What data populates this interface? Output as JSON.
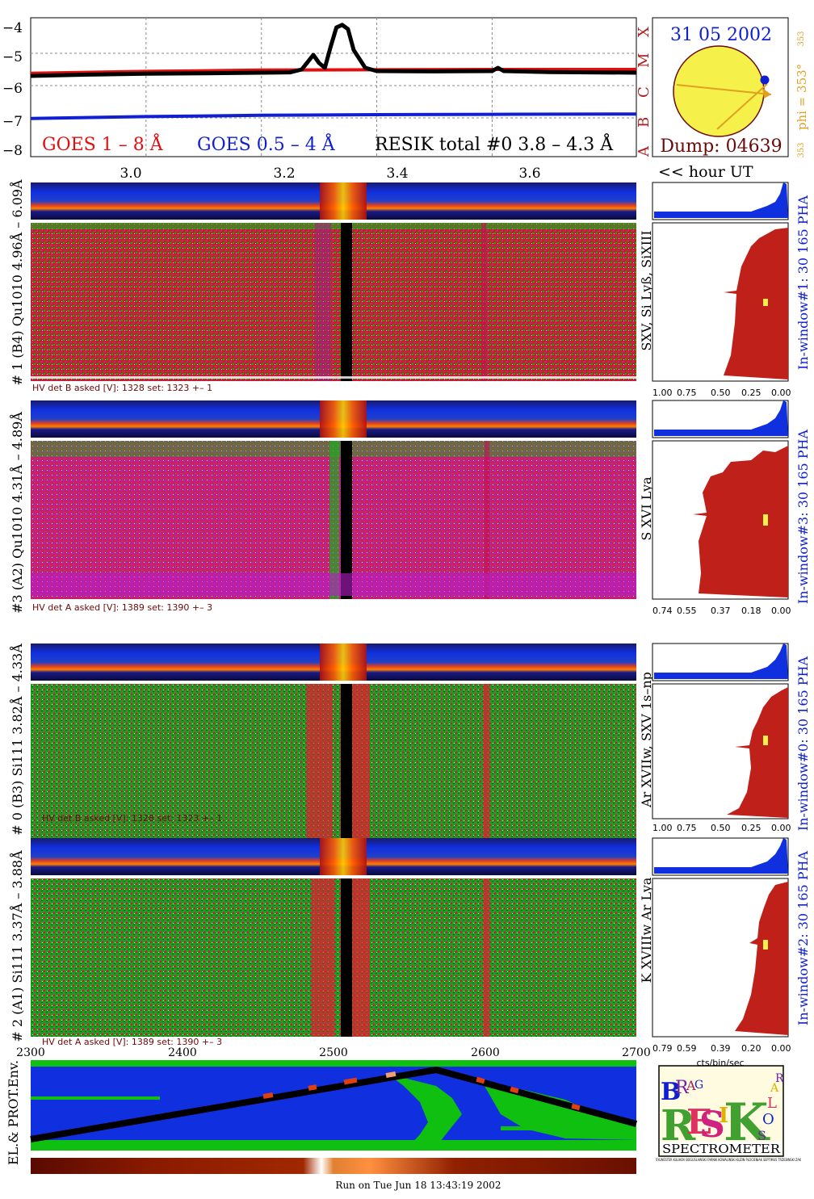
{
  "goes": {
    "legend_red": "GOES 1 – 8 Å",
    "legend_blue": "GOES 0.5 – 4 Å",
    "legend_black": "RESIK total #0  3.8 – 4.3 Å",
    "y_ticks": [
      "−4",
      "−5",
      "−6",
      "−7",
      "−8"
    ],
    "class_labels": [
      "A",
      "B",
      "C",
      "M",
      "X"
    ],
    "x_ticks": [
      "3.0",
      "3.2",
      "3.4",
      "3.6"
    ],
    "hour_label": "<< hour UT"
  },
  "sun": {
    "date": "31 05 2002",
    "dump": "Dump: 04639",
    "phi": "phi = 353°",
    "phi_small_top": "353",
    "phi_small_bottom": "353"
  },
  "panels": [
    {
      "left_label": "# 1 (B4) Qu1010 4.96Å – 6.09Å",
      "line_label": "SXV, Si Lyß, SiXIII",
      "window_label": "In-window#1:   30 165  PHA",
      "hv": "HV det B asked [V]:  1328 set:  1323  +–    1",
      "pha_ticks": [
        "1.00",
        "0.75",
        "0.50",
        "0.25",
        "0.00"
      ],
      "theme": "red"
    },
    {
      "left_label": "#3 (A2) Qu1010  4.31Å – 4.89Å",
      "line_label": "S XVI Lya",
      "window_label": "In-window#3:   30 165  PHA",
      "hv": "HV det A asked [V]:  1389 set:  1390  +–    3",
      "pha_ticks": [
        "0.74",
        "0.55",
        "0.37",
        "0.18",
        "0.00"
      ],
      "theme": "magenta"
    },
    {
      "left_label": "# 0 (B3) Si111  3.82Å – 4.33Å",
      "line_label": "Ar XVIIw,  SXV 1s–np",
      "window_label": "In-window#0:   30 165  PHA",
      "hv": "HV det B asked [V]:  1328 set:  1323  +–    1",
      "pha_ticks": [
        "1.00",
        "0.75",
        "0.50",
        "0.25",
        "0.00"
      ],
      "theme": "green"
    },
    {
      "left_label": "# 2 (A1) Si111  3.37Å – 3.88Å",
      "line_label": "K XVIIIw  Ar Lya",
      "window_label": "In-window#2:   30 165  PHA",
      "hv": "HV det A asked [V]:  1389 set:  1390  +–    3",
      "pha_ticks": [
        "0.79",
        "0.59",
        "0.39",
        "0.20",
        "0.00"
      ],
      "theme": "green"
    }
  ],
  "bottom": {
    "x_ticks": [
      "2300",
      "2400",
      "2500",
      "2600",
      "2700"
    ],
    "env_label": "EL.& PROT.Env.",
    "cts_label": "cts/bin/sec",
    "run_label": "Run on Tue Jun 18 13:43:19 2002"
  },
  "logo": {
    "word": "SPECTROMETER",
    "letters": [
      "B",
      "R",
      "A",
      "G",
      "R",
      "E",
      "S",
      "I",
      "K",
      "S",
      "O",
      "L",
      "A",
      "R"
    ],
    "credits": "SYLWESTER  KULIKOV  BOGUSLAWSKI  FARNIK  KOWALINSKI  KUZIN  PLOCIENIAK  SEPTIMUS  TRZEBINSKI  ZAK"
  },
  "chart_data": {
    "type": "line",
    "title": "",
    "xlabel": "hour UT",
    "ylabel": "",
    "x_ticks": [
      3.0,
      3.2,
      3.4,
      3.6
    ],
    "xlim": [
      2.8,
      3.85
    ],
    "ylim": [
      -8.2,
      -3.9
    ],
    "grid": true,
    "series": [
      {
        "name": "GOES 1 – 8 Å",
        "color": "#e01010",
        "x": [
          2.8,
          3.0,
          3.2,
          3.4,
          3.6,
          3.85
        ],
        "y": [
          -5.62,
          -5.56,
          -5.52,
          -5.51,
          -5.5,
          -5.5
        ]
      },
      {
        "name": "GOES 0.5 – 4 Å",
        "color": "#1020d0",
        "x": [
          2.8,
          3.0,
          3.2,
          3.4,
          3.6,
          3.85
        ],
        "y": [
          -7.02,
          -6.96,
          -6.92,
          -6.9,
          -6.89,
          -6.88
        ]
      },
      {
        "name": "RESIK total #0  3.8 – 4.3 Å",
        "color": "#000000",
        "x": [
          2.8,
          2.9,
          3.0,
          3.1,
          3.2,
          3.25,
          3.27,
          3.29,
          3.3,
          3.31,
          3.32,
          3.33,
          3.34,
          3.35,
          3.36,
          3.38,
          3.4,
          3.5,
          3.6,
          3.61,
          3.62,
          3.7,
          3.85
        ],
        "y": [
          -5.7,
          -5.66,
          -5.63,
          -5.62,
          -5.6,
          -5.59,
          -5.5,
          -5.05,
          -5.3,
          -5.45,
          -4.8,
          -4.2,
          -4.12,
          -4.25,
          -4.9,
          -5.45,
          -5.55,
          -5.56,
          -5.55,
          -5.45,
          -5.55,
          -5.58,
          -5.6
        ]
      }
    ]
  }
}
